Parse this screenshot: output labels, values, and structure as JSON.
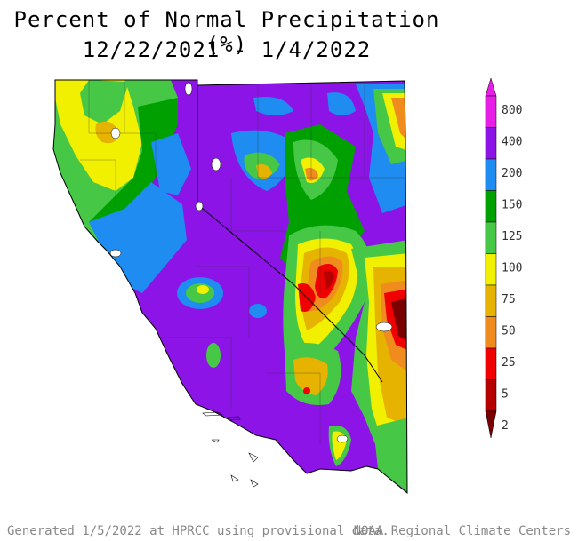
{
  "title": {
    "line1": "Percent of Normal Precipitation (%)",
    "line2": "12/22/2021 - 1/4/2022"
  },
  "legend": {
    "items": [
      {
        "label": "800",
        "color": "#e61ee6"
      },
      {
        "label": "400",
        "color": "#8c14e6"
      },
      {
        "label": "200",
        "color": "#1e8cf0"
      },
      {
        "label": "150",
        "color": "#00a000"
      },
      {
        "label": "125",
        "color": "#46c846"
      },
      {
        "label": "100",
        "color": "#f0f000"
      },
      {
        "label": "75",
        "color": "#e6b400"
      },
      {
        "label": "50",
        "color": "#f08c1e"
      },
      {
        "label": "25",
        "color": "#f00000"
      },
      {
        "label": "5",
        "color": "#b40000"
      },
      {
        "label": "2",
        "color": "#780000"
      }
    ]
  },
  "footer": {
    "left": "Generated 1/5/2022 at HPRCC using provisional data.",
    "right": "NOAA Regional Climate Centers"
  },
  "colors": {
    "purple": "#8c14e6",
    "blue": "#1e8cf0",
    "green": "#00a000",
    "light_green": "#46c846",
    "yellow": "#f0f000",
    "gold": "#e6b400",
    "orange": "#f08c1e",
    "red": "#f00000",
    "dark_red": "#780000"
  }
}
